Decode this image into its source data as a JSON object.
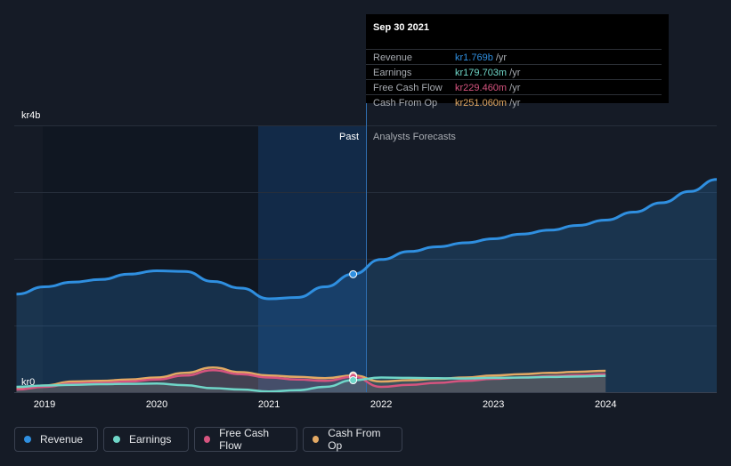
{
  "tooltip": {
    "date": "Sep 30 2021",
    "rows": [
      {
        "label": "Revenue",
        "value": "kr1.769b",
        "unit": " /yr",
        "color": "#2f8fe0"
      },
      {
        "label": "Earnings",
        "value": "kr179.703m",
        "unit": " /yr",
        "color": "#6fd6c8"
      },
      {
        "label": "Free Cash Flow",
        "value": "kr229.460m",
        "unit": " /yr",
        "color": "#d6547f"
      },
      {
        "label": "Cash From Op",
        "value": "kr251.060m",
        "unit": " /yr",
        "color": "#e3a964"
      }
    ]
  },
  "legend": [
    {
      "label": "Revenue",
      "color": "#2f8fe0"
    },
    {
      "label": "Earnings",
      "color": "#6fd6c8"
    },
    {
      "label": "Free Cash Flow",
      "color": "#d6547f"
    },
    {
      "label": "Cash From Op",
      "color": "#e3a964"
    }
  ],
  "chart_data": {
    "type": "line",
    "ylabel_top": "kr4b",
    "ylabel_bottom": "kr0",
    "ylim": [
      0,
      4000
    ],
    "xlim": [
      2018.73,
      2024.99
    ],
    "x_ticks": [
      2019,
      2020,
      2021,
      2022,
      2023,
      2024
    ],
    "x_tick_labels": [
      "2019",
      "2020",
      "2021",
      "2022",
      "2023",
      "2024"
    ],
    "past_label": "Past",
    "forecast_label": "Analysts Forecasts",
    "divider_x": 2021.75,
    "highlight_start": 2020.75,
    "series": [
      {
        "name": "Revenue",
        "color": "#2f8fe0",
        "fill": true,
        "x": [
          2018.75,
          2019.0,
          2019.25,
          2019.5,
          2019.75,
          2020.0,
          2020.25,
          2020.5,
          2020.75,
          2021.0,
          2021.25,
          2021.5,
          2021.75,
          2022.0,
          2022.25,
          2022.5,
          2022.75,
          2023.0,
          2023.25,
          2023.5,
          2023.75,
          2024.0,
          2024.25,
          2024.5,
          2024.75,
          2024.99
        ],
        "values": [
          1470,
          1580,
          1650,
          1690,
          1770,
          1820,
          1810,
          1660,
          1560,
          1400,
          1420,
          1580,
          1769,
          1990,
          2110,
          2180,
          2240,
          2300,
          2370,
          2430,
          2500,
          2580,
          2700,
          2840,
          3010,
          3190
        ]
      },
      {
        "name": "Earnings",
        "color": "#6fd6c8",
        "fill": false,
        "x": [
          2018.75,
          2019.0,
          2019.25,
          2019.5,
          2019.75,
          2020.0,
          2020.25,
          2020.5,
          2020.75,
          2021.0,
          2021.25,
          2021.5,
          2021.75,
          2022.0,
          2022.25,
          2022.5,
          2022.75,
          2023.0,
          2023.25,
          2023.5,
          2023.75,
          2024.0
        ],
        "values": [
          80,
          100,
          110,
          120,
          125,
          130,
          105,
          60,
          40,
          10,
          30,
          80,
          179.703,
          220,
          215,
          210,
          205,
          215,
          220,
          228,
          235,
          245
        ]
      },
      {
        "name": "Free Cash Flow",
        "color": "#d6547f",
        "fill": false,
        "x": [
          2018.75,
          2019.0,
          2019.25,
          2019.5,
          2019.75,
          2020.0,
          2020.25,
          2020.5,
          2020.75,
          2021.0,
          2021.25,
          2021.5,
          2021.75,
          2022.0,
          2022.25,
          2022.5,
          2022.75,
          2023.0,
          2023.25,
          2023.5,
          2023.75,
          2024.0
        ],
        "values": [
          40,
          80,
          130,
          140,
          160,
          190,
          250,
          330,
          270,
          220,
          190,
          170,
          229.46,
          80,
          110,
          140,
          170,
          200,
          220,
          240,
          255,
          270
        ]
      },
      {
        "name": "Cash From Op",
        "color": "#e3a964",
        "fill": false,
        "x": [
          2018.75,
          2019.0,
          2019.25,
          2019.5,
          2019.75,
          2020.0,
          2020.25,
          2020.5,
          2020.75,
          2021.0,
          2021.25,
          2021.5,
          2021.75,
          2022.0,
          2022.25,
          2022.5,
          2022.75,
          2023.0,
          2023.25,
          2023.5,
          2023.75,
          2024.0
        ],
        "values": [
          50,
          100,
          160,
          170,
          190,
          220,
          290,
          370,
          300,
          250,
          230,
          210,
          251.06,
          160,
          180,
          200,
          220,
          250,
          270,
          290,
          305,
          320
        ]
      }
    ]
  }
}
